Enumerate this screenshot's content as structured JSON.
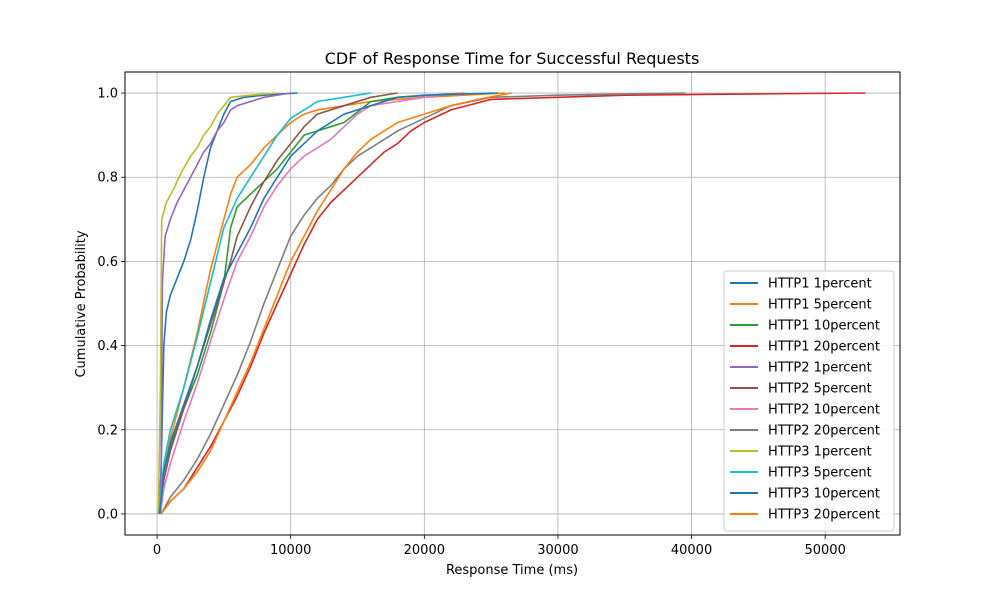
{
  "chart_data": {
    "type": "line",
    "title": "CDF of Response Time for Successful Requests",
    "xlabel": "Response Time (ms)",
    "ylabel": "Cumulative Probability",
    "xlim": [
      -2400,
      55600
    ],
    "ylim": [
      -0.05,
      1.05
    ],
    "xticks": [
      0,
      10000,
      20000,
      30000,
      40000,
      50000
    ],
    "yticks": [
      0.0,
      0.2,
      0.4,
      0.6,
      0.8,
      1.0
    ],
    "xtick_labels": [
      "0",
      "10000",
      "20000",
      "30000",
      "40000",
      "50000"
    ],
    "ytick_labels": [
      "0.0",
      "0.2",
      "0.4",
      "0.6",
      "0.8",
      "1.0"
    ],
    "grid": true,
    "legend_position": "lower-right",
    "series": [
      {
        "name": "HTTP1 1percent",
        "color": "#1f77b4",
        "points": [
          [
            100,
            0
          ],
          [
            300,
            0.1
          ],
          [
            500,
            0.4
          ],
          [
            700,
            0.48
          ],
          [
            1000,
            0.52
          ],
          [
            1500,
            0.56
          ],
          [
            2000,
            0.6
          ],
          [
            2500,
            0.65
          ],
          [
            3000,
            0.72
          ],
          [
            3500,
            0.8
          ],
          [
            4000,
            0.87
          ],
          [
            4500,
            0.91
          ],
          [
            5000,
            0.95
          ],
          [
            5500,
            0.98
          ],
          [
            6500,
            0.99
          ],
          [
            8000,
            0.995
          ],
          [
            10500,
            1.0
          ]
        ]
      },
      {
        "name": "HTTP1 5percent",
        "color": "#ff7f0e",
        "points": [
          [
            150,
            0
          ],
          [
            500,
            0.1
          ],
          [
            1000,
            0.18
          ],
          [
            2000,
            0.3
          ],
          [
            3000,
            0.43
          ],
          [
            4000,
            0.58
          ],
          [
            5000,
            0.7
          ],
          [
            5500,
            0.76
          ],
          [
            6000,
            0.8
          ],
          [
            7000,
            0.83
          ],
          [
            8000,
            0.87
          ],
          [
            9000,
            0.9
          ],
          [
            10000,
            0.93
          ],
          [
            11000,
            0.95
          ],
          [
            12000,
            0.96
          ],
          [
            14000,
            0.97
          ],
          [
            16000,
            0.98
          ],
          [
            20000,
            0.99
          ],
          [
            26000,
            1.0
          ]
        ]
      },
      {
        "name": "HTTP1 10percent",
        "color": "#2ca02c",
        "points": [
          [
            200,
            0
          ],
          [
            500,
            0.1
          ],
          [
            1000,
            0.16
          ],
          [
            2000,
            0.25
          ],
          [
            3000,
            0.33
          ],
          [
            4000,
            0.43
          ],
          [
            5000,
            0.55
          ],
          [
            5500,
            0.68
          ],
          [
            6000,
            0.73
          ],
          [
            7000,
            0.76
          ],
          [
            8000,
            0.79
          ],
          [
            9000,
            0.82
          ],
          [
            10000,
            0.86
          ],
          [
            10500,
            0.88
          ],
          [
            11000,
            0.9
          ],
          [
            12000,
            0.91
          ],
          [
            13000,
            0.92
          ],
          [
            14000,
            0.93
          ],
          [
            16000,
            0.98
          ],
          [
            18000,
            0.99
          ],
          [
            23000,
            1.0
          ]
        ]
      },
      {
        "name": "HTTP1 20percent",
        "color": "#d62728",
        "points": [
          [
            300,
            0
          ],
          [
            1000,
            0.03
          ],
          [
            2000,
            0.06
          ],
          [
            3000,
            0.11
          ],
          [
            4000,
            0.16
          ],
          [
            5000,
            0.22
          ],
          [
            6000,
            0.28
          ],
          [
            7000,
            0.35
          ],
          [
            8000,
            0.43
          ],
          [
            9000,
            0.5
          ],
          [
            10000,
            0.57
          ],
          [
            11000,
            0.64
          ],
          [
            12000,
            0.7
          ],
          [
            13000,
            0.74
          ],
          [
            14000,
            0.77
          ],
          [
            15000,
            0.8
          ],
          [
            16000,
            0.83
          ],
          [
            17000,
            0.86
          ],
          [
            18000,
            0.88
          ],
          [
            19000,
            0.91
          ],
          [
            20000,
            0.93
          ],
          [
            22000,
            0.96
          ],
          [
            25000,
            0.985
          ],
          [
            30000,
            0.99
          ],
          [
            35000,
            0.995
          ],
          [
            45000,
            0.998
          ],
          [
            53000,
            1.0
          ]
        ]
      },
      {
        "name": "HTTP2 1percent",
        "color": "#9467bd",
        "points": [
          [
            150,
            0
          ],
          [
            300,
            0.1
          ],
          [
            400,
            0.55
          ],
          [
            600,
            0.66
          ],
          [
            1000,
            0.7
          ],
          [
            1500,
            0.74
          ],
          [
            2000,
            0.77
          ],
          [
            2500,
            0.8
          ],
          [
            3000,
            0.83
          ],
          [
            3500,
            0.86
          ],
          [
            4000,
            0.88
          ],
          [
            4500,
            0.91
          ],
          [
            5000,
            0.93
          ],
          [
            5500,
            0.96
          ],
          [
            6000,
            0.97
          ],
          [
            7000,
            0.98
          ],
          [
            8000,
            0.99
          ],
          [
            10000,
            1.0
          ]
        ]
      },
      {
        "name": "HTTP2 5percent",
        "color": "#8c564b",
        "points": [
          [
            200,
            0
          ],
          [
            500,
            0.08
          ],
          [
            1000,
            0.15
          ],
          [
            2000,
            0.25
          ],
          [
            3000,
            0.35
          ],
          [
            4000,
            0.45
          ],
          [
            5000,
            0.55
          ],
          [
            5500,
            0.6
          ],
          [
            6000,
            0.66
          ],
          [
            7000,
            0.73
          ],
          [
            8000,
            0.79
          ],
          [
            9000,
            0.84
          ],
          [
            10000,
            0.88
          ],
          [
            11000,
            0.92
          ],
          [
            12000,
            0.95
          ],
          [
            14000,
            0.97
          ],
          [
            16000,
            0.99
          ],
          [
            18000,
            1.0
          ]
        ]
      },
      {
        "name": "HTTP2 10percent",
        "color": "#e377c2",
        "points": [
          [
            250,
            0
          ],
          [
            500,
            0.06
          ],
          [
            1000,
            0.12
          ],
          [
            2000,
            0.22
          ],
          [
            3000,
            0.31
          ],
          [
            4000,
            0.41
          ],
          [
            5000,
            0.51
          ],
          [
            6000,
            0.6
          ],
          [
            7000,
            0.66
          ],
          [
            8000,
            0.73
          ],
          [
            9000,
            0.78
          ],
          [
            10000,
            0.82
          ],
          [
            11000,
            0.85
          ],
          [
            12000,
            0.87
          ],
          [
            13000,
            0.89
          ],
          [
            14000,
            0.92
          ],
          [
            15000,
            0.95
          ],
          [
            16000,
            0.97
          ],
          [
            18000,
            0.98
          ],
          [
            20000,
            0.99
          ],
          [
            23000,
            1.0
          ]
        ]
      },
      {
        "name": "HTTP2 20percent",
        "color": "#7f7f7f",
        "points": [
          [
            300,
            0
          ],
          [
            1000,
            0.04
          ],
          [
            2000,
            0.08
          ],
          [
            3000,
            0.13
          ],
          [
            4000,
            0.19
          ],
          [
            5000,
            0.26
          ],
          [
            6000,
            0.33
          ],
          [
            7000,
            0.41
          ],
          [
            8000,
            0.5
          ],
          [
            9000,
            0.58
          ],
          [
            10000,
            0.66
          ],
          [
            11000,
            0.71
          ],
          [
            12000,
            0.75
          ],
          [
            13000,
            0.78
          ],
          [
            14000,
            0.82
          ],
          [
            15000,
            0.85
          ],
          [
            16000,
            0.87
          ],
          [
            18000,
            0.91
          ],
          [
            20000,
            0.94
          ],
          [
            22000,
            0.97
          ],
          [
            25000,
            0.99
          ],
          [
            30000,
            0.995
          ],
          [
            39500,
            1.0
          ]
        ]
      },
      {
        "name": "HTTP3 1percent",
        "color": "#bcbd22",
        "points": [
          [
            100,
            0
          ],
          [
            250,
            0.3
          ],
          [
            350,
            0.7
          ],
          [
            700,
            0.74
          ],
          [
            1200,
            0.77
          ],
          [
            1800,
            0.81
          ],
          [
            2500,
            0.85
          ],
          [
            3000,
            0.87
          ],
          [
            3500,
            0.9
          ],
          [
            4000,
            0.92
          ],
          [
            4500,
            0.95
          ],
          [
            5000,
            0.97
          ],
          [
            5500,
            0.99
          ],
          [
            7000,
            0.995
          ],
          [
            9000,
            1.0
          ]
        ]
      },
      {
        "name": "HTTP3 5percent",
        "color": "#17becf",
        "points": [
          [
            150,
            0
          ],
          [
            500,
            0.12
          ],
          [
            1000,
            0.2
          ],
          [
            2000,
            0.3
          ],
          [
            3000,
            0.42
          ],
          [
            4000,
            0.55
          ],
          [
            5000,
            0.68
          ],
          [
            6000,
            0.75
          ],
          [
            7000,
            0.8
          ],
          [
            8000,
            0.85
          ],
          [
            9000,
            0.9
          ],
          [
            10000,
            0.94
          ],
          [
            11000,
            0.96
          ],
          [
            12000,
            0.98
          ],
          [
            14000,
            0.99
          ],
          [
            16000,
            1.0
          ]
        ]
      },
      {
        "name": "HTTP3 10percent",
        "color": "#1f77b4",
        "points": [
          [
            200,
            0
          ],
          [
            500,
            0.1
          ],
          [
            1000,
            0.17
          ],
          [
            2000,
            0.26
          ],
          [
            3000,
            0.35
          ],
          [
            4000,
            0.46
          ],
          [
            5000,
            0.56
          ],
          [
            6000,
            0.62
          ],
          [
            7000,
            0.68
          ],
          [
            8000,
            0.75
          ],
          [
            9000,
            0.8
          ],
          [
            10000,
            0.85
          ],
          [
            11000,
            0.88
          ],
          [
            12000,
            0.91
          ],
          [
            13000,
            0.93
          ],
          [
            14000,
            0.95
          ],
          [
            16000,
            0.97
          ],
          [
            18000,
            0.99
          ],
          [
            20000,
            0.995
          ],
          [
            25500,
            1.0
          ]
        ]
      },
      {
        "name": "HTTP3 20percent",
        "color": "#ff7f0e",
        "points": [
          [
            300,
            0
          ],
          [
            1000,
            0.03
          ],
          [
            2000,
            0.06
          ],
          [
            3000,
            0.1
          ],
          [
            4000,
            0.15
          ],
          [
            5000,
            0.22
          ],
          [
            6000,
            0.29
          ],
          [
            7000,
            0.36
          ],
          [
            8000,
            0.44
          ],
          [
            9000,
            0.52
          ],
          [
            10000,
            0.6
          ],
          [
            11000,
            0.66
          ],
          [
            12000,
            0.72
          ],
          [
            13000,
            0.77
          ],
          [
            14000,
            0.82
          ],
          [
            15000,
            0.86
          ],
          [
            16000,
            0.89
          ],
          [
            17000,
            0.91
          ],
          [
            18000,
            0.93
          ],
          [
            20000,
            0.95
          ],
          [
            22000,
            0.97
          ],
          [
            24000,
            0.985
          ],
          [
            26500,
            1.0
          ]
        ]
      }
    ]
  }
}
